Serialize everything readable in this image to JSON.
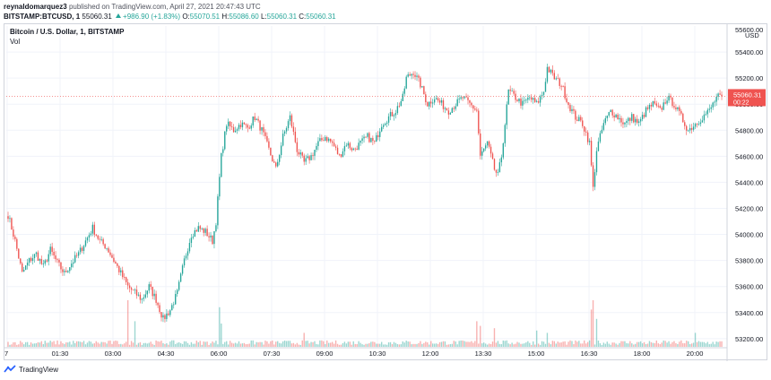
{
  "header": {
    "publisher": "reynaldomarquez3",
    "published_text": "published on TradingView.com, April 27, 2021 20:47:43 UTC",
    "symbol_line": "BITSTAMP:BTCUSD, 1",
    "last": "55060.31",
    "change": "+986.90 (+1.83%)",
    "o_label": "O:",
    "o_value": "55070.51",
    "h_label": "H:",
    "h_value": "55086.60",
    "l_label": "L:",
    "l_value": "55060.31",
    "c_label": "C:",
    "c_value": "55060.31"
  },
  "footer": {
    "brand": "TradingView"
  },
  "colors": {
    "up": "#26a69a",
    "down": "#ef5350",
    "grid": "#f0f3fa",
    "price_label": "#ef5350"
  },
  "chart_data": {
    "type": "candlestick",
    "title": "Bitcoin / U.S. Dollar, 1, BITSTAMP",
    "volume_label": "Vol",
    "currency_label": "USD",
    "ylim": [
      53130,
      55600
    ],
    "y_ticks": [
      53200,
      53400,
      53600,
      53800,
      54000,
      54200,
      54400,
      54600,
      54800,
      55000,
      55200,
      55400
    ],
    "y_tick_labels": [
      "53200.00",
      "53400.00",
      "53600.00",
      "53800.00",
      "54000.00",
      "54200.00",
      "54400.00",
      "54600.00",
      "54800.00",
      "55000.00",
      "55200.00",
      "55400.00"
    ],
    "top_partial_label": "55600.00",
    "x_ticks": [
      "7",
      "01:30",
      "03:00",
      "04:30",
      "06:00",
      "07:30",
      "09:00",
      "10:30",
      "12:00",
      "13:30",
      "15:00",
      "16:30",
      "18:00",
      "20:00"
    ],
    "last_price": 55060.31,
    "last_price_label": "55060.31",
    "countdown_label": "00:22",
    "path_anchors": [
      [
        0,
        54150
      ],
      [
        4,
        53950
      ],
      [
        8,
        53700
      ],
      [
        12,
        53800
      ],
      [
        16,
        53850
      ],
      [
        20,
        53750
      ],
      [
        24,
        53880
      ],
      [
        28,
        53780
      ],
      [
        32,
        53700
      ],
      [
        36,
        53780
      ],
      [
        40,
        53850
      ],
      [
        44,
        53950
      ],
      [
        48,
        54050
      ],
      [
        52,
        53950
      ],
      [
        56,
        53900
      ],
      [
        60,
        53800
      ],
      [
        64,
        53700
      ],
      [
        68,
        53600
      ],
      [
        72,
        53550
      ],
      [
        76,
        53500
      ],
      [
        80,
        53600
      ],
      [
        84,
        53500
      ],
      [
        88,
        53350
      ],
      [
        92,
        53420
      ],
      [
        96,
        53550
      ],
      [
        100,
        53800
      ],
      [
        104,
        54000
      ],
      [
        108,
        54050
      ],
      [
        112,
        54020
      ],
      [
        116,
        53950
      ],
      [
        118,
        54100
      ],
      [
        121,
        54600
      ],
      [
        124,
        54850
      ],
      [
        128,
        54800
      ],
      [
        132,
        54850
      ],
      [
        136,
        54820
      ],
      [
        140,
        54900
      ],
      [
        144,
        54800
      ],
      [
        148,
        54650
      ],
      [
        152,
        54500
      ],
      [
        156,
        54750
      ],
      [
        160,
        54900
      ],
      [
        164,
        54650
      ],
      [
        168,
        54550
      ],
      [
        172,
        54600
      ],
      [
        176,
        54700
      ],
      [
        180,
        54750
      ],
      [
        184,
        54700
      ],
      [
        188,
        54600
      ],
      [
        192,
        54700
      ],
      [
        196,
        54650
      ],
      [
        200,
        54700
      ],
      [
        204,
        54750
      ],
      [
        208,
        54700
      ],
      [
        212,
        54850
      ],
      [
        216,
        54900
      ],
      [
        220,
        54950
      ],
      [
        224,
        55050
      ],
      [
        226,
        55200
      ],
      [
        230,
        55250
      ],
      [
        234,
        55150
      ],
      [
        238,
        55000
      ],
      [
        242,
        55050
      ],
      [
        246,
        55000
      ],
      [
        250,
        54950
      ],
      [
        254,
        55000
      ],
      [
        258,
        55050
      ],
      [
        262,
        55000
      ],
      [
        266,
        54950
      ],
      [
        268,
        54600
      ],
      [
        272,
        54700
      ],
      [
        276,
        54500
      ],
      [
        278,
        54450
      ],
      [
        280,
        54600
      ],
      [
        284,
        55100
      ],
      [
        288,
        55050
      ],
      [
        292,
        55000
      ],
      [
        296,
        55050
      ],
      [
        300,
        55000
      ],
      [
        304,
        55100
      ],
      [
        306,
        55280
      ],
      [
        310,
        55200
      ],
      [
        314,
        55150
      ],
      [
        318,
        55000
      ],
      [
        322,
        54900
      ],
      [
        326,
        54850
      ],
      [
        330,
        54700
      ],
      [
        332,
        54350
      ],
      [
        334,
        54650
      ],
      [
        338,
        54850
      ],
      [
        342,
        54950
      ],
      [
        346,
        54900
      ],
      [
        350,
        54850
      ],
      [
        354,
        54900
      ],
      [
        358,
        54850
      ],
      [
        362,
        54950
      ],
      [
        366,
        55000
      ],
      [
        370,
        54950
      ],
      [
        374,
        55050
      ],
      [
        378,
        55000
      ],
      [
        382,
        54900
      ],
      [
        386,
        54800
      ],
      [
        390,
        54850
      ],
      [
        394,
        54900
      ],
      [
        398,
        54950
      ],
      [
        402,
        55050
      ],
      [
        405,
        55060
      ]
    ],
    "candle_count": 406,
    "volume_spikes": [
      [
        68,
        1.0
      ],
      [
        72,
        0.55
      ],
      [
        120,
        0.85
      ],
      [
        121,
        0.5
      ],
      [
        168,
        0.3
      ],
      [
        266,
        0.55
      ],
      [
        268,
        0.45
      ],
      [
        276,
        0.4
      ],
      [
        300,
        0.35
      ],
      [
        331,
        0.8
      ],
      [
        332,
        1.0
      ],
      [
        334,
        0.6
      ],
      [
        306,
        0.3
      ],
      [
        390,
        0.3
      ]
    ]
  }
}
